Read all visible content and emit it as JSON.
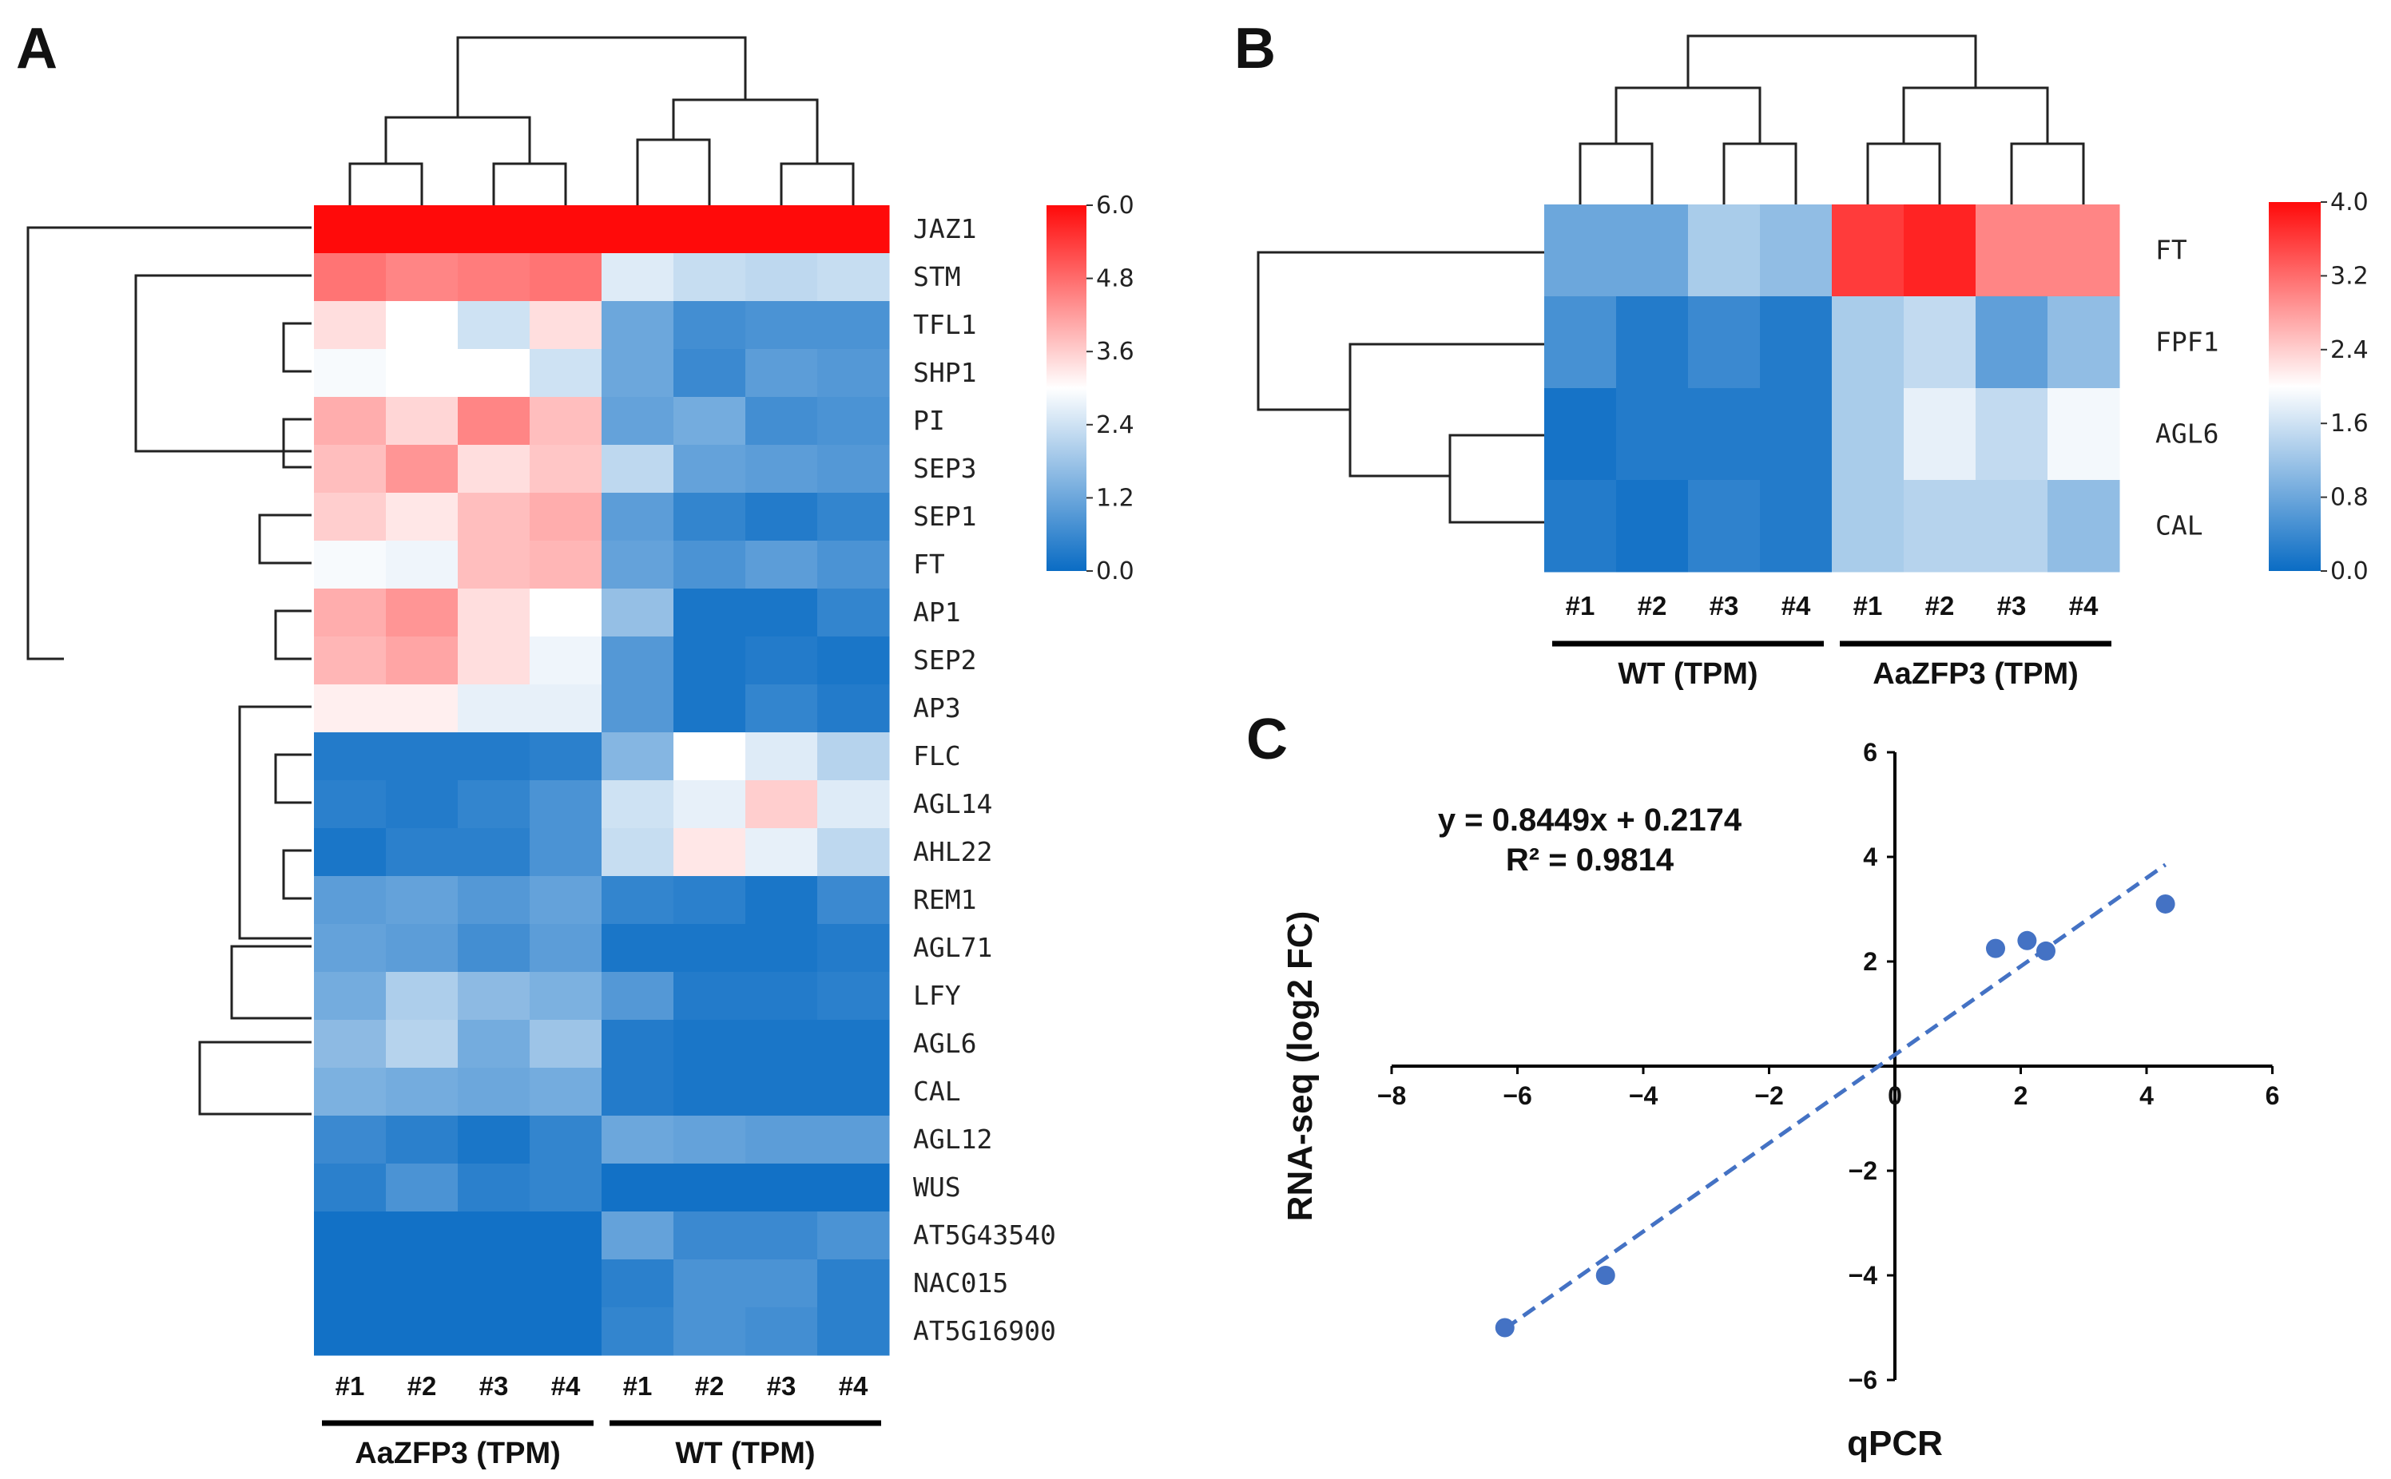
{
  "colors": {
    "low": "#0a6cc4",
    "mid": "#ffffff",
    "high": "#ff0a0a",
    "trend": "#4472c4",
    "point": "#4472c4"
  },
  "chart_data": [
    {
      "panel": "A",
      "type": "heatmap",
      "sample_labels": [
        "#1",
        "#2",
        "#3",
        "#4",
        "#1",
        "#2",
        "#3",
        "#4"
      ],
      "groups": [
        {
          "label": "AaZFP3 (TPM)",
          "start": 0,
          "end": 3
        },
        {
          "label": "WT (TPM)",
          "start": 4,
          "end": 7
        }
      ],
      "colorbar": {
        "min": 0.0,
        "max": 6.0,
        "ticks": [
          "6.0",
          "4.8",
          "3.6",
          "2.4",
          "1.2",
          "0.0"
        ]
      },
      "rows": [
        {
          "gene": "JAZ1",
          "values": [
            6.0,
            6.0,
            6.0,
            6.0,
            6.0,
            6.0,
            6.0,
            6.0
          ]
        },
        {
          "gene": "STM",
          "values": [
            4.7,
            4.5,
            4.6,
            4.7,
            2.6,
            2.3,
            2.2,
            2.3
          ]
        },
        {
          "gene": "TFL1",
          "values": [
            3.4,
            3.0,
            2.4,
            3.4,
            1.2,
            0.7,
            0.8,
            0.8
          ]
        },
        {
          "gene": "SHP1",
          "values": [
            2.9,
            3.0,
            3.0,
            2.4,
            1.2,
            0.6,
            1.0,
            0.9
          ]
        },
        {
          "gene": "PI",
          "values": [
            4.0,
            3.5,
            4.5,
            3.8,
            1.1,
            1.3,
            0.7,
            0.8
          ]
        },
        {
          "gene": "SEP3",
          "values": [
            3.8,
            4.3,
            3.4,
            3.7,
            2.2,
            1.1,
            1.0,
            0.9
          ]
        },
        {
          "gene": "SEP1",
          "values": [
            3.6,
            3.3,
            3.8,
            4.0,
            1.0,
            0.5,
            0.3,
            0.5
          ]
        },
        {
          "gene": "FT",
          "values": [
            2.9,
            2.8,
            3.8,
            3.9,
            1.1,
            0.8,
            1.0,
            0.8
          ]
        },
        {
          "gene": "AP1",
          "values": [
            4.0,
            4.3,
            3.4,
            3.0,
            1.7,
            0.2,
            0.2,
            0.5
          ]
        },
        {
          "gene": "SEP2",
          "values": [
            3.9,
            4.1,
            3.4,
            2.8,
            0.9,
            0.2,
            0.3,
            0.2
          ]
        },
        {
          "gene": "AP3",
          "values": [
            3.2,
            3.2,
            2.7,
            2.7,
            0.9,
            0.2,
            0.5,
            0.3
          ]
        },
        {
          "gene": "FLC",
          "values": [
            0.3,
            0.3,
            0.3,
            0.4,
            1.5,
            3.0,
            2.6,
            2.1
          ]
        },
        {
          "gene": "AGL14",
          "values": [
            0.4,
            0.3,
            0.5,
            0.8,
            2.4,
            2.7,
            3.6,
            2.6
          ]
        },
        {
          "gene": "AHL22",
          "values": [
            0.2,
            0.4,
            0.4,
            0.8,
            2.3,
            3.3,
            2.7,
            2.2
          ]
        },
        {
          "gene": "REM1",
          "values": [
            1.0,
            1.1,
            0.9,
            1.1,
            0.5,
            0.4,
            0.2,
            0.6
          ]
        },
        {
          "gene": "AGL71",
          "values": [
            1.1,
            1.0,
            0.7,
            1.0,
            0.2,
            0.2,
            0.2,
            0.3
          ]
        },
        {
          "gene": "LFY",
          "values": [
            1.3,
            2.0,
            1.6,
            1.4,
            0.9,
            0.3,
            0.3,
            0.4
          ]
        },
        {
          "gene": "AGL6",
          "values": [
            1.6,
            2.1,
            1.3,
            1.8,
            0.3,
            0.2,
            0.2,
            0.2
          ]
        },
        {
          "gene": "CAL",
          "values": [
            1.4,
            1.3,
            1.2,
            1.3,
            0.3,
            0.2,
            0.2,
            0.2
          ]
        },
        {
          "gene": "AGL12",
          "values": [
            0.6,
            0.4,
            0.2,
            0.5,
            1.2,
            1.1,
            1.0,
            1.0
          ]
        },
        {
          "gene": "WUS",
          "values": [
            0.4,
            0.8,
            0.4,
            0.5,
            0.1,
            0.1,
            0.1,
            0.1
          ]
        },
        {
          "gene": "AT5G43540",
          "values": [
            0.1,
            0.1,
            0.1,
            0.1,
            1.1,
            0.6,
            0.6,
            0.8
          ]
        },
        {
          "gene": "NAC015",
          "values": [
            0.1,
            0.1,
            0.1,
            0.1,
            0.4,
            0.8,
            0.8,
            0.4
          ]
        },
        {
          "gene": "AT5G16900",
          "values": [
            0.1,
            0.1,
            0.1,
            0.1,
            0.5,
            0.8,
            0.7,
            0.4
          ]
        }
      ]
    },
    {
      "panel": "B",
      "type": "heatmap",
      "sample_labels": [
        "#1",
        "#2",
        "#3",
        "#4",
        "#1",
        "#2",
        "#3",
        "#4"
      ],
      "groups": [
        {
          "label": "WT (TPM)",
          "start": 0,
          "end": 3
        },
        {
          "label": "AaZFP3 (TPM)",
          "start": 4,
          "end": 7
        }
      ],
      "colorbar": {
        "min": 0.0,
        "max": 4.0,
        "ticks": [
          "4.0",
          "3.2",
          "2.4",
          "1.6",
          "0.8",
          "0.0"
        ]
      },
      "rows": [
        {
          "gene": "FT",
          "values": [
            0.8,
            0.8,
            1.3,
            1.1,
            3.6,
            3.8,
            3.0,
            3.0
          ]
        },
        {
          "gene": "FPF1",
          "values": [
            0.5,
            0.2,
            0.4,
            0.2,
            1.3,
            1.5,
            0.7,
            1.1
          ]
        },
        {
          "gene": "AGL6",
          "values": [
            0.1,
            0.2,
            0.2,
            0.2,
            1.3,
            1.8,
            1.5,
            1.9
          ]
        },
        {
          "gene": "CAL",
          "values": [
            0.2,
            0.1,
            0.3,
            0.2,
            1.3,
            1.4,
            1.4,
            1.1
          ]
        }
      ]
    },
    {
      "panel": "C",
      "type": "scatter",
      "xlabel": "qPCR",
      "ylabel": "RNA-seq (log2 FC)",
      "xlim": [
        -8,
        6
      ],
      "ylim": [
        -6,
        6
      ],
      "xticks": [
        -8,
        -6,
        -4,
        -2,
        0,
        2,
        4,
        6
      ],
      "yticks": [
        -6,
        -4,
        -2,
        0,
        2,
        4,
        6
      ],
      "x": [
        -6.2,
        -4.6,
        1.6,
        2.1,
        2.4,
        4.3
      ],
      "y": [
        -5.0,
        -4.0,
        2.25,
        2.4,
        2.2,
        3.1
      ],
      "trendline": {
        "slope": 0.8449,
        "intercept": 0.2174,
        "x_range": [
          -6.2,
          4.3
        ]
      },
      "equation": "y = 0.8449x + 0.2174",
      "r_squared": "R² = 0.9814"
    }
  ],
  "panels": {
    "a": "A",
    "b": "B",
    "c": "C"
  }
}
